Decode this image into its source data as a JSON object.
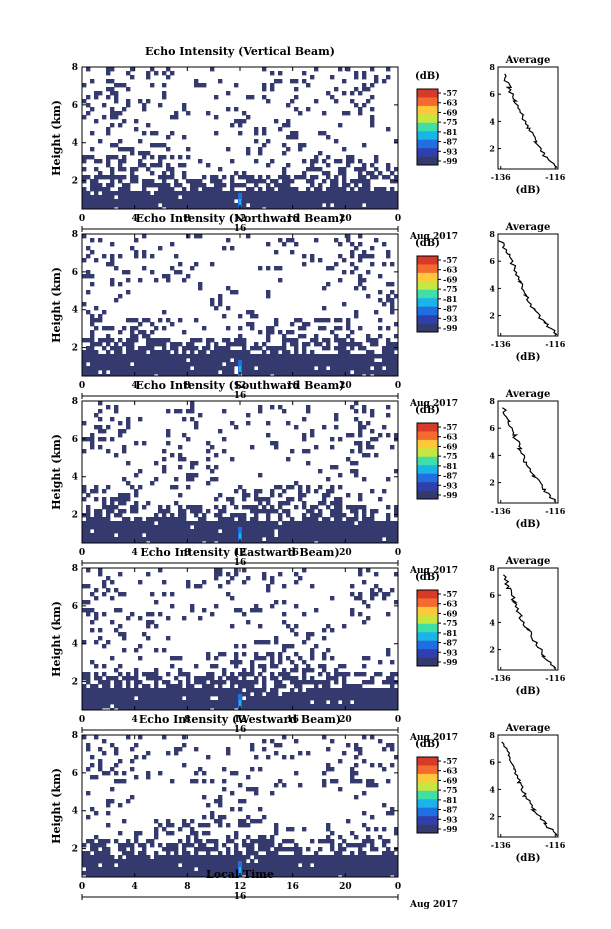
{
  "figure": {
    "xlabel": "Local Time",
    "colorbar_unit": "(dB)",
    "colorbar_ticks": [
      "-57",
      "-63",
      "-69",
      "-75",
      "-81",
      "-87",
      "-93",
      "-99"
    ],
    "colorscale": [
      "#353a6e",
      "#2f3fb0",
      "#1f6fe0",
      "#19b4e8",
      "#3fdfa8",
      "#c6e640",
      "#ffc83a",
      "#f56a2f",
      "#d83a2a"
    ],
    "panel_fill_color": "#353a6e",
    "avg_title": "Average",
    "avg_xlabel": "(dB)"
  },
  "chart_data": [
    {
      "type": "heatmap",
      "title": "Echo Intensity (Vertical Beam)",
      "ylabel": "Height (km)",
      "x_ticks": [
        "0",
        "4",
        "8",
        "12",
        "16",
        "20",
        "0"
      ],
      "y_ticks": [
        "2",
        "4",
        "6",
        "8"
      ],
      "ylim": [
        0.5,
        8
      ],
      "date_marker": "16",
      "date_label": "Aug 2017",
      "avg_title": "Average",
      "avg_x_ticks": [
        "-136",
        "-116"
      ],
      "avg_xlim": [
        -137,
        -115
      ],
      "avg_height": [
        0.6,
        1.5,
        2.5,
        3.5,
        4.5,
        5.5,
        6.5,
        7.5
      ],
      "avg_value": [
        -115,
        -120,
        -123,
        -126,
        -128,
        -131,
        -133,
        -135
      ]
    },
    {
      "type": "heatmap",
      "title": "Echo Intensity (Northward Beam)",
      "ylabel": "Height (km)",
      "x_ticks": [
        "0",
        "4",
        "8",
        "12",
        "16",
        "20",
        "0"
      ],
      "y_ticks": [
        "2",
        "4",
        "6",
        "8"
      ],
      "ylim": [
        0.5,
        8
      ],
      "date_marker": "16",
      "date_label": "Aug 2017",
      "avg_title": "Average",
      "avg_x_ticks": [
        "-136",
        "-116"
      ],
      "avg_xlim": [
        -137,
        -115
      ],
      "avg_height": [
        0.6,
        1.5,
        2.5,
        3.5,
        4.5,
        5.5,
        6.5,
        7.5
      ],
      "avg_value": [
        -115,
        -120,
        -124,
        -127,
        -129,
        -131,
        -133,
        -136
      ]
    },
    {
      "type": "heatmap",
      "title": "Echo Intensity (Southward Beam)",
      "ylabel": "Height (km)",
      "x_ticks": [
        "0",
        "4",
        "8",
        "12",
        "16",
        "20",
        "0"
      ],
      "y_ticks": [
        "2",
        "4",
        "6",
        "8"
      ],
      "ylim": [
        0.5,
        8
      ],
      "date_marker": "16",
      "date_label": "Aug 2017",
      "avg_title": "Average",
      "avg_x_ticks": [
        "-136",
        "-116"
      ],
      "avg_xlim": [
        -137,
        -115
      ],
      "avg_height": [
        0.6,
        1.5,
        2.5,
        3.5,
        4.5,
        5.5,
        6.5,
        7.5
      ],
      "avg_value": [
        -116,
        -120,
        -124,
        -127,
        -129,
        -131,
        -133,
        -135
      ]
    },
    {
      "type": "heatmap",
      "title": "Echo Intensity (Eastward Beam)",
      "ylabel": "Height (km)",
      "x_ticks": [
        "0",
        "4",
        "8",
        "12",
        "16",
        "20",
        "0"
      ],
      "y_ticks": [
        "2",
        "4",
        "6",
        "8"
      ],
      "ylim": [
        0.5,
        8
      ],
      "date_marker": "16",
      "date_label": "Aug 2017",
      "avg_title": "Average",
      "avg_x_ticks": [
        "-136",
        "-116"
      ],
      "avg_xlim": [
        -137,
        -115
      ],
      "avg_height": [
        0.6,
        1.5,
        2.5,
        3.5,
        4.5,
        5.5,
        6.5,
        7.5
      ],
      "avg_value": [
        -116,
        -120,
        -123,
        -126,
        -129,
        -131,
        -133,
        -135
      ]
    },
    {
      "type": "heatmap",
      "title": "Echo Intensity (Westward Beam)",
      "ylabel": "Height (km)",
      "x_ticks": [
        "0",
        "4",
        "8",
        "12",
        "16",
        "20",
        "0"
      ],
      "y_ticks": [
        "2",
        "4",
        "6",
        "8"
      ],
      "ylim": [
        0.5,
        8
      ],
      "date_marker": "16",
      "date_label": "Aug 2017",
      "avg_title": "Average",
      "avg_x_ticks": [
        "-136",
        "-116"
      ],
      "avg_xlim": [
        -137,
        -115
      ],
      "avg_height": [
        0.6,
        1.5,
        2.5,
        3.5,
        4.5,
        5.5,
        6.5,
        7.5
      ],
      "avg_value": [
        -115,
        -120,
        -124,
        -127,
        -129,
        -131,
        -133,
        -136
      ]
    }
  ]
}
